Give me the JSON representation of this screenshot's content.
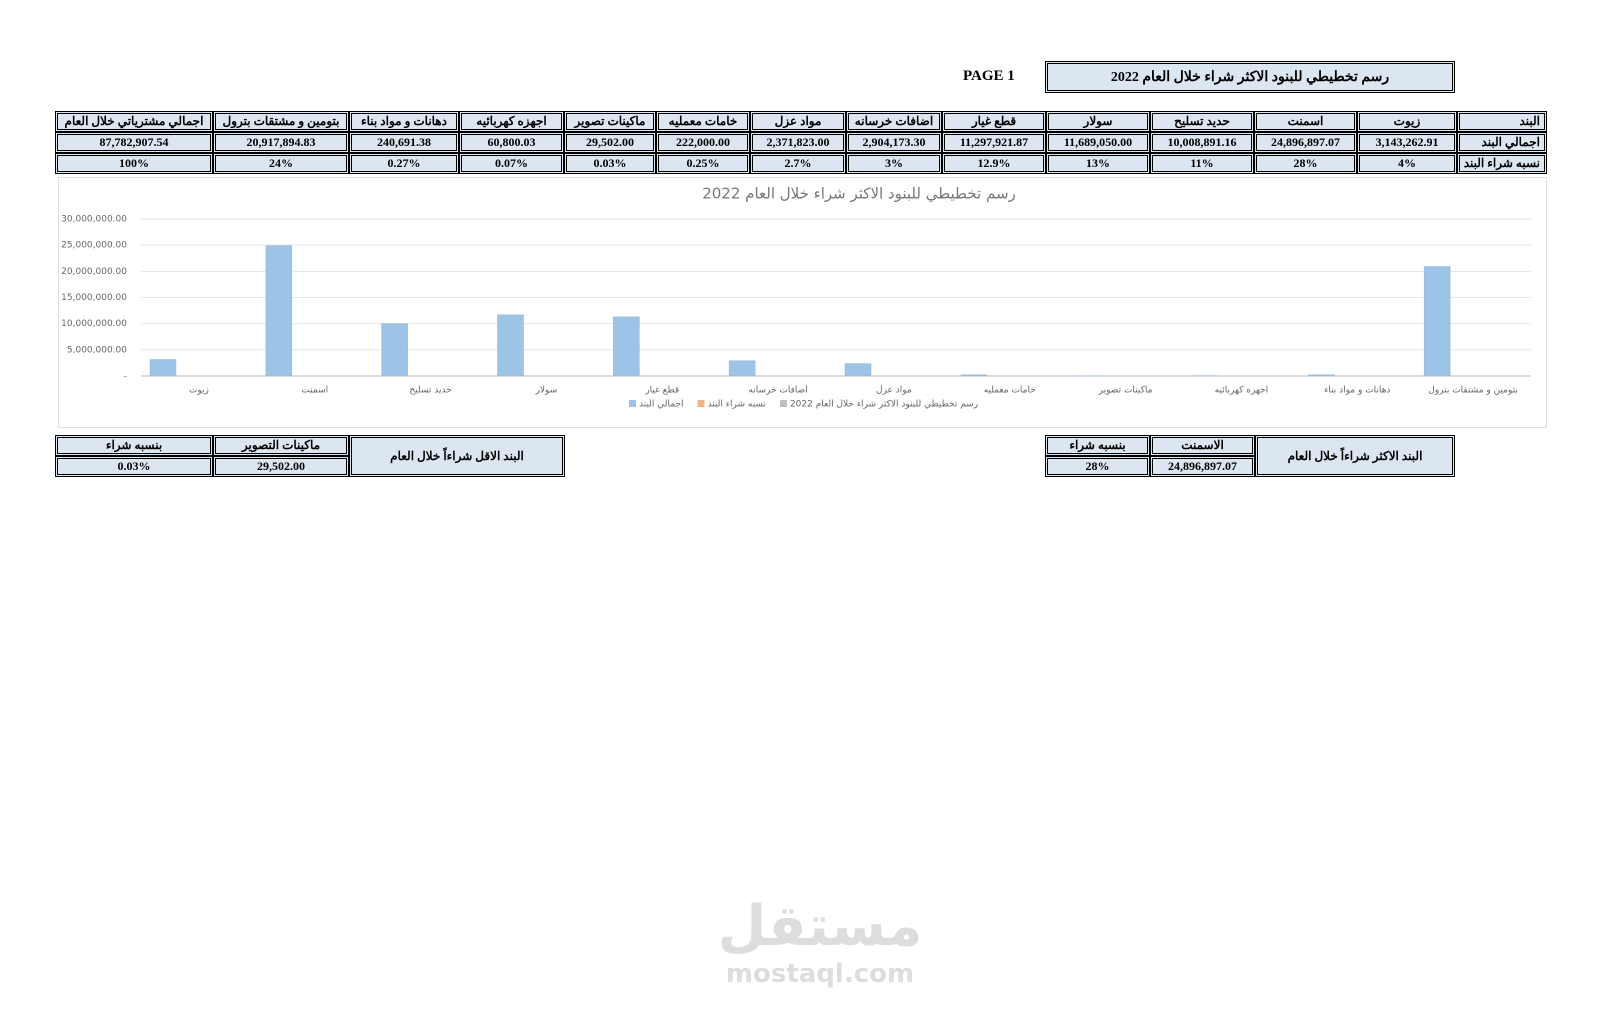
{
  "header": {
    "page": "PAGE 1",
    "title": "رسم تخطيطي للبنود الاكثر شراء خلال العام 2022"
  },
  "table": {
    "rows": [
      [
        "البند",
        "زيوت",
        "اسمنت",
        "حديد تسليح",
        "سولار",
        "قطع غيار",
        "اضافات خرسانه",
        "مواد عزل",
        "خامات معمليه",
        "ماكينات تصوير",
        "اجهزه كهربائيه",
        "دهانات و مواد بناء",
        "بتومين و مشتقات بترول",
        "اجمالي مشترياتي خلال العام"
      ],
      [
        "اجمالي البند",
        "3,143,262.91",
        "24,896,897.07",
        "10,008,891.16",
        "11,689,050.00",
        "11,297,921.87",
        "2,904,173.30",
        "2,371,823.00",
        "222,000.00",
        "29,502.00",
        "60,800.03",
        "240,691.38",
        "20,917,894.83",
        "87,782,907.54"
      ],
      [
        "نسبه شراء البند",
        "4%",
        "28%",
        "11%",
        "13%",
        "12.9%",
        "3%",
        "2.7%",
        "0.25%",
        "0.03%",
        "0.07%",
        "0.27%",
        "24%",
        "100%"
      ]
    ]
  },
  "chart_data": {
    "type": "bar",
    "title": "رسم تخطيطي للبنود الاكثر شراء خلال العام 2022",
    "categories": [
      "زيوت",
      "اسمنت",
      "حديد تسليح",
      "سولار",
      "قطع غيار",
      "اضافات خرسانه",
      "مواد عزل",
      "خامات معمليه",
      "ماكينات تصوير",
      "اجهزه كهربائيه",
      "دهانات و مواد بناء",
      "بتومين و مشتقات بترول"
    ],
    "series": [
      {
        "name": "اجمالي البند",
        "color": "#9dc3e6",
        "values": [
          3143262.91,
          24896897.07,
          10008891.16,
          11689050,
          11297921.87,
          2904173.3,
          2371823,
          222000,
          29502,
          60800.03,
          240691.38,
          20917894.83
        ]
      },
      {
        "name": "نسبه شراء البند",
        "color": "#f4b183"
      },
      {
        "name": "رسم تخطيطي للبنود الاكثر شراء خلال العام 2022",
        "color": "#bfbfbf"
      }
    ],
    "ylim": [
      0,
      30000000
    ],
    "yticks": [
      {
        "value": 0,
        "label": "-"
      },
      {
        "value": 5000000,
        "label": "5,000,000.00"
      },
      {
        "value": 10000000,
        "label": "10,000,000.00"
      },
      {
        "value": 15000000,
        "label": "15,000,000.00"
      },
      {
        "value": 20000000,
        "label": "20,000,000.00"
      },
      {
        "value": 25000000,
        "label": "25,000,000.00"
      },
      {
        "value": 30000000,
        "label": "30,000,000.00"
      }
    ],
    "grid": true
  },
  "most": {
    "label": "البند الاكثر شراءاً خلال العام",
    "item_header": "الاسمنت",
    "item_value": "24,896,897.07",
    "pct_header": "بنسبه شراء",
    "pct_value": "28%"
  },
  "least": {
    "label": "البند الاقل شراءاً خلال العام",
    "item_header": "ماكينات التصوير",
    "item_value": "29,502.00",
    "pct_header": "بنسبه شراء",
    "pct_value": "0.03%"
  },
  "watermark": {
    "brand": "مستقل",
    "site": "mostaql.com"
  }
}
